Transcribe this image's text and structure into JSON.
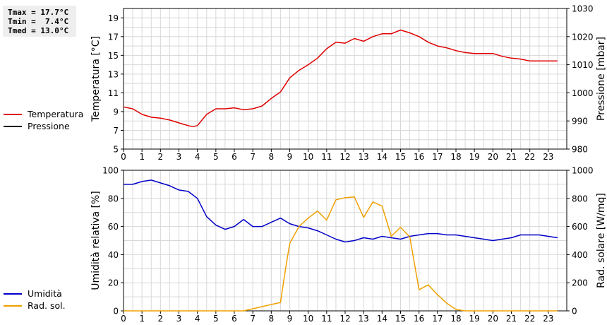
{
  "stats": {
    "tmax": "Tmax = 17.7°C",
    "tmin": "Tmin =  7.4°C",
    "tmed": "Tmed = 13.0°C"
  },
  "colors": {
    "temperature": "#e00000",
    "pressure": "#000000",
    "humidity": "#0000c8",
    "solar": "#f0a000",
    "grid": "#d8d8d8"
  },
  "chart_data": [
    {
      "type": "line",
      "x_ticks": [
        "0",
        "1",
        "2",
        "3",
        "4",
        "5",
        "6",
        "7",
        "8",
        "9",
        "10",
        "11",
        "12",
        "13",
        "14",
        "15",
        "16",
        "17",
        "18",
        "19",
        "20",
        "21",
        "22",
        "23"
      ],
      "xlim": [
        0,
        24
      ],
      "ylabel": "Temperatura [°C]",
      "ylim": [
        5,
        20
      ],
      "y_ticks": [
        "5",
        "7",
        "9",
        "11",
        "13",
        "15",
        "17",
        "19"
      ],
      "y2label": "Pressione [mbar]",
      "y2lim": [
        980,
        1030
      ],
      "y2_ticks": [
        "980",
        "990",
        "1000",
        "1010",
        "1020",
        "1030"
      ],
      "grid": true,
      "legend_position": "left",
      "series": [
        {
          "name": "Temperatura",
          "axis": "left",
          "x": [
            0,
            0.5,
            1,
            1.5,
            2,
            2.5,
            3,
            3.5,
            3.75,
            4,
            4.5,
            5,
            5.5,
            6,
            6.5,
            7,
            7.5,
            8,
            8.5,
            9,
            9.5,
            10,
            10.5,
            11,
            11.5,
            12,
            12.5,
            13,
            13.5,
            14,
            14.5,
            15,
            15.5,
            16,
            16.5,
            17,
            17.5,
            18,
            18.5,
            19,
            19.5,
            20,
            20.5,
            21,
            21.5,
            22,
            22.5,
            23,
            23.5
          ],
          "values": [
            9.5,
            9.3,
            8.7,
            8.4,
            8.3,
            8.1,
            7.8,
            7.5,
            7.4,
            7.5,
            8.7,
            9.3,
            9.3,
            9.4,
            9.2,
            9.3,
            9.6,
            10.4,
            11.1,
            12.6,
            13.4,
            14.0,
            14.7,
            15.7,
            16.4,
            16.3,
            16.8,
            16.5,
            17.0,
            17.3,
            17.3,
            17.7,
            17.4,
            17.0,
            16.4,
            16.0,
            15.8,
            15.5,
            15.3,
            15.2,
            15.2,
            15.2,
            14.9,
            14.7,
            14.6,
            14.4,
            14.4,
            14.4,
            14.4
          ]
        },
        {
          "name": "Pressione",
          "axis": "right",
          "x": [],
          "values": []
        }
      ]
    },
    {
      "type": "line",
      "x_ticks": [
        "0",
        "1",
        "2",
        "3",
        "4",
        "5",
        "6",
        "7",
        "8",
        "9",
        "10",
        "11",
        "12",
        "13",
        "14",
        "15",
        "16",
        "17",
        "18",
        "19",
        "20",
        "21",
        "22",
        "23"
      ],
      "xlim": [
        0,
        24
      ],
      "ylabel": "Umidità relativa [%]",
      "ylim": [
        0,
        100
      ],
      "y_ticks": [
        "0",
        "20",
        "40",
        "60",
        "80",
        "100"
      ],
      "y2label": "Rad. solare [W/mq]",
      "y2lim": [
        0,
        1000
      ],
      "y2_ticks": [
        "0",
        "200",
        "400",
        "600",
        "800",
        "1000"
      ],
      "grid": true,
      "legend_position": "left",
      "series": [
        {
          "name": "Umidità",
          "axis": "left",
          "x": [
            0,
            0.5,
            1,
            1.5,
            2,
            2.5,
            3,
            3.5,
            4,
            4.5,
            5,
            5.5,
            6,
            6.5,
            7,
            7.5,
            8,
            8.5,
            9,
            9.5,
            10,
            10.5,
            11,
            11.5,
            12,
            12.5,
            13,
            13.5,
            14,
            14.5,
            15,
            15.5,
            16,
            16.5,
            17,
            17.5,
            18,
            18.5,
            19,
            19.5,
            20,
            20.5,
            21,
            21.5,
            22,
            22.5,
            23,
            23.5
          ],
          "values": [
            90,
            90,
            92,
            93,
            91,
            89,
            86,
            85,
            80,
            67,
            61,
            58,
            60,
            65,
            60,
            60,
            63,
            66,
            62,
            60,
            59,
            57,
            54,
            51,
            49,
            50,
            52,
            51,
            53,
            52,
            51,
            53,
            54,
            55,
            55,
            54,
            54,
            53,
            52,
            51,
            50,
            51,
            52,
            54,
            54,
            54,
            53,
            52
          ]
        },
        {
          "name": "Rad. sol.",
          "axis": "right",
          "x": [
            0,
            0.5,
            1,
            1.5,
            2,
            2.5,
            3,
            3.5,
            4,
            4.5,
            5,
            5.5,
            6,
            6.5,
            7,
            7.5,
            8,
            8.5,
            8.75,
            9,
            9.5,
            10,
            10.5,
            11,
            11.5,
            12,
            12.5,
            13,
            13.5,
            14,
            14.5,
            15,
            15.5,
            16,
            16.5,
            17,
            17.5,
            18,
            18.5,
            19,
            19.5,
            20,
            20.5,
            21,
            21.5,
            22,
            22.5,
            23,
            23.5
          ],
          "values": [
            0,
            0,
            0,
            0,
            0,
            0,
            0,
            0,
            0,
            0,
            0,
            0,
            0,
            0,
            15,
            30,
            45,
            60,
            280,
            480,
            600,
            660,
            710,
            645,
            790,
            805,
            810,
            665,
            775,
            745,
            530,
            595,
            525,
            150,
            185,
            115,
            55,
            10,
            0,
            0,
            0,
            0,
            0,
            0,
            0,
            0,
            0,
            0,
            0
          ]
        }
      ]
    }
  ]
}
